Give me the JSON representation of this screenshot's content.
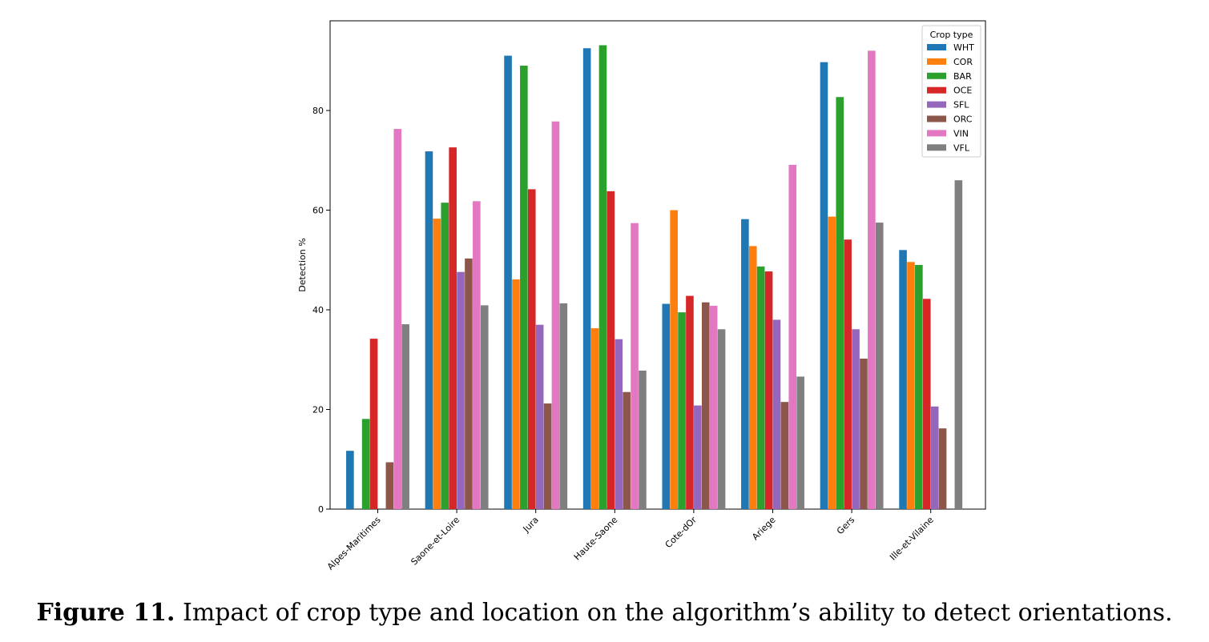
{
  "caption": {
    "label": "Figure 11.",
    "text": " Impact of crop type and location on the algorithm’s ability to detect orientations."
  },
  "chart_data": {
    "type": "bar",
    "ylabel": "Detection %",
    "xlabel": "",
    "ylim": [
      0,
      98
    ],
    "yticks": [
      0,
      20,
      40,
      60,
      80
    ],
    "grid": false,
    "legend": {
      "title": "Crop type",
      "placement": "top-right"
    },
    "categories": [
      "Alpes-Maritimes",
      "Saone-et-Loire",
      "Jura",
      "Haute-Saone",
      "Cote-dOr",
      "Ariege",
      "Gers",
      "Ille-et-Vilaine"
    ],
    "series": [
      {
        "name": "WHT",
        "color": "#1f77b4",
        "values": [
          11.7,
          71.8,
          91.0,
          92.5,
          41.2,
          58.2,
          89.7,
          52.0
        ]
      },
      {
        "name": "COR",
        "color": "#ff7f0e",
        "values": [
          0,
          58.3,
          46.1,
          36.3,
          60.0,
          52.8,
          58.7,
          49.6
        ]
      },
      {
        "name": "BAR",
        "color": "#2ca02c",
        "values": [
          18.1,
          61.5,
          89.0,
          93.1,
          39.5,
          48.7,
          82.7,
          49.0
        ]
      },
      {
        "name": "OCE",
        "color": "#d62728",
        "values": [
          34.2,
          72.6,
          64.2,
          63.8,
          42.8,
          47.7,
          54.1,
          42.2
        ]
      },
      {
        "name": "SFL",
        "color": "#9467bd",
        "values": [
          0,
          47.6,
          37.0,
          34.1,
          20.8,
          38.0,
          36.1,
          20.6
        ]
      },
      {
        "name": "ORC",
        "color": "#8c564b",
        "values": [
          9.4,
          50.3,
          21.2,
          23.5,
          41.5,
          21.5,
          30.2,
          16.2
        ]
      },
      {
        "name": "VIN",
        "color": "#e377c2",
        "values": [
          76.3,
          61.8,
          77.8,
          57.4,
          40.8,
          69.1,
          92.0,
          0
        ]
      },
      {
        "name": "VFL",
        "color": "#7f7f7f",
        "values": [
          37.1,
          40.9,
          41.3,
          27.8,
          36.1,
          26.6,
          57.5,
          66.0
        ]
      }
    ]
  }
}
